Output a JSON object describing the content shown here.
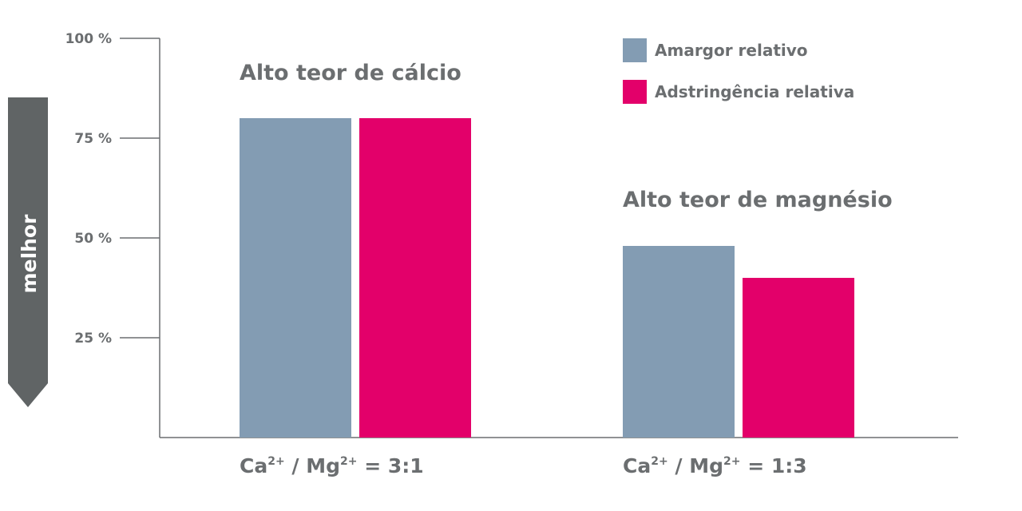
{
  "chart_data": {
    "type": "bar",
    "categories": [
      "3:1",
      "1:3"
    ],
    "category_labels": [
      {
        "ca": "Ca",
        "ca_sup": "2+",
        "sep": " / ",
        "mg": "Mg",
        "mg_sup": "2+",
        "ratio": " = 3:1"
      },
      {
        "ca": "Ca",
        "ca_sup": "2+",
        "sep": " / ",
        "mg": "Mg",
        "mg_sup": "2+",
        "ratio": " = 1:3"
      }
    ],
    "group_titles": [
      "Alto teor de cálcio",
      "Alto teor de magnésio"
    ],
    "series": [
      {
        "name": "Amargor relativo",
        "color": "#839cb3",
        "values": [
          80,
          48
        ]
      },
      {
        "name": "Adstringência relativa",
        "color": "#e3006a",
        "values": [
          80,
          40
        ]
      }
    ],
    "y_ticks": [
      100,
      75,
      50,
      25
    ],
    "y_tick_labels": [
      "100 %",
      "75 %",
      "50 %",
      "25 %"
    ],
    "ylim": [
      0,
      100
    ],
    "arrow_label": "melhor",
    "arrow_color": "#606465",
    "axis_color": "#6b6e70",
    "legend_position": "top-right",
    "grid": false
  }
}
